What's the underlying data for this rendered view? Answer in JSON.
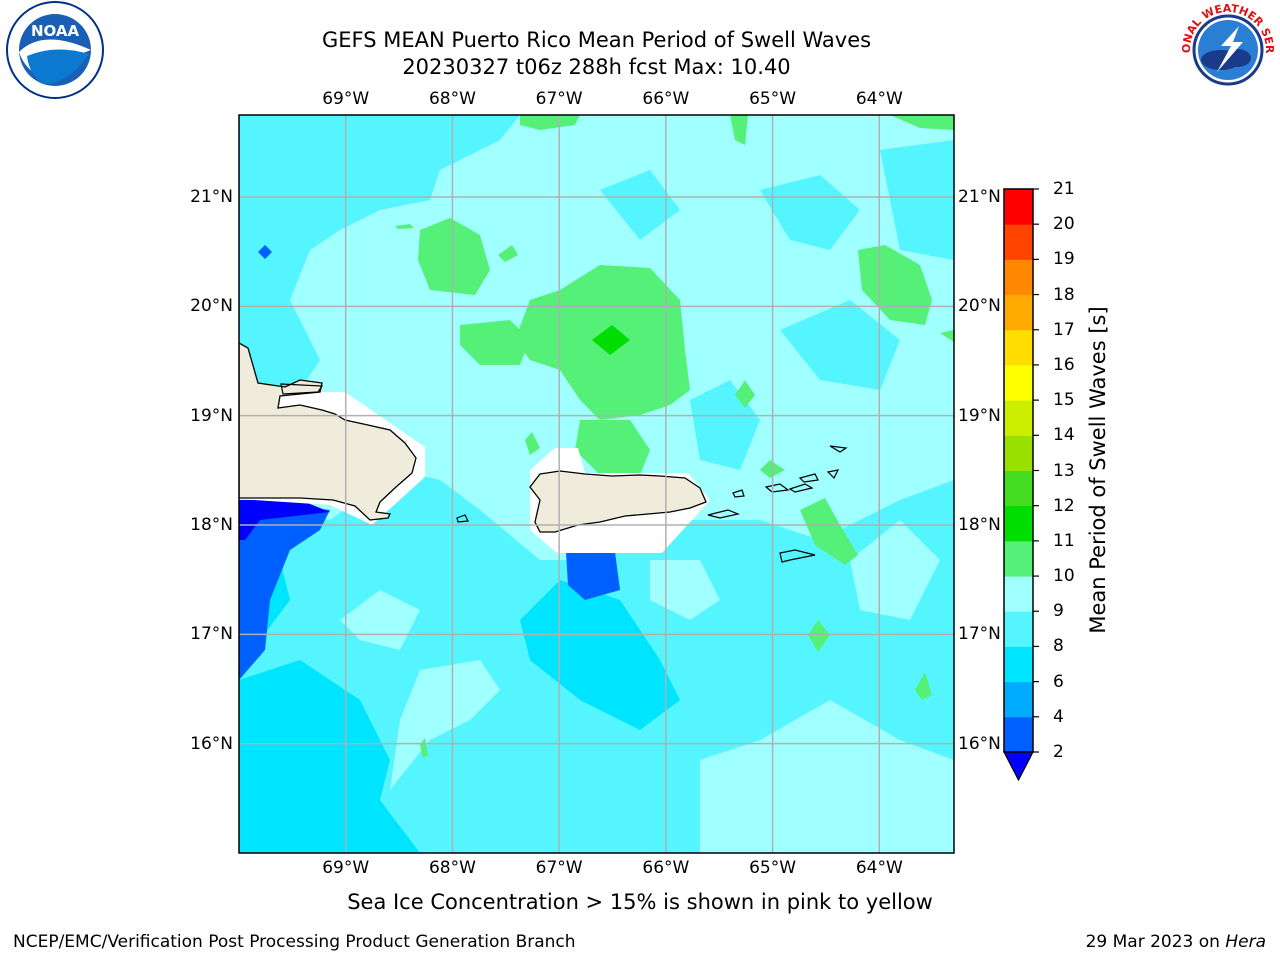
{
  "title": {
    "line1": "GEFS MEAN Puerto Rico Mean Period of Swell Waves",
    "line2": "20230327 t06z 288h fcst   Max: 10.40"
  },
  "axes": {
    "lon_labels": [
      "69°W",
      "68°W",
      "67°W",
      "66°W",
      "65°W",
      "64°W"
    ],
    "lon_values": [
      -69,
      -68,
      -67,
      -66,
      -65,
      -64
    ],
    "lat_labels": [
      "21°N",
      "20°N",
      "19°N",
      "18°N",
      "17°N",
      "16°N"
    ],
    "lat_values": [
      21,
      20,
      19,
      18,
      17,
      16
    ],
    "lon_range": [
      -70,
      -63.3
    ],
    "lat_range": [
      15.0,
      21.75
    ],
    "grid": true
  },
  "colorbar": {
    "label": "Mean Period of Swell Waves [s]",
    "ticks": [
      "2",
      "4",
      "6",
      "8",
      "9",
      "10",
      "11",
      "12",
      "13",
      "14",
      "15",
      "16",
      "17",
      "18",
      "19",
      "20",
      "21"
    ],
    "colors": [
      "#0000ff",
      "#0060ff",
      "#00aaff",
      "#00e5ff",
      "#55f5ff",
      "#a0ffff",
      "#55f077",
      "#00dd00",
      "#44dd22",
      "#99e000",
      "#ccee00",
      "#ffff00",
      "#ffdd00",
      "#ffaa00",
      "#ff8800",
      "#ff4400",
      "#ff0000"
    ],
    "extend_min": true
  },
  "footnote": "Sea Ice Concentration > 15% is shown in pink to yellow",
  "footer": {
    "left": "NCEP/EMC/Verification Post Processing Product Generation Branch",
    "right_date": "29 Mar 2023 on ",
    "right_host": "Hera"
  },
  "logos": {
    "noaa_text": "NOAA",
    "nws_text": "NATIONAL WEATHER SERVICE"
  }
}
